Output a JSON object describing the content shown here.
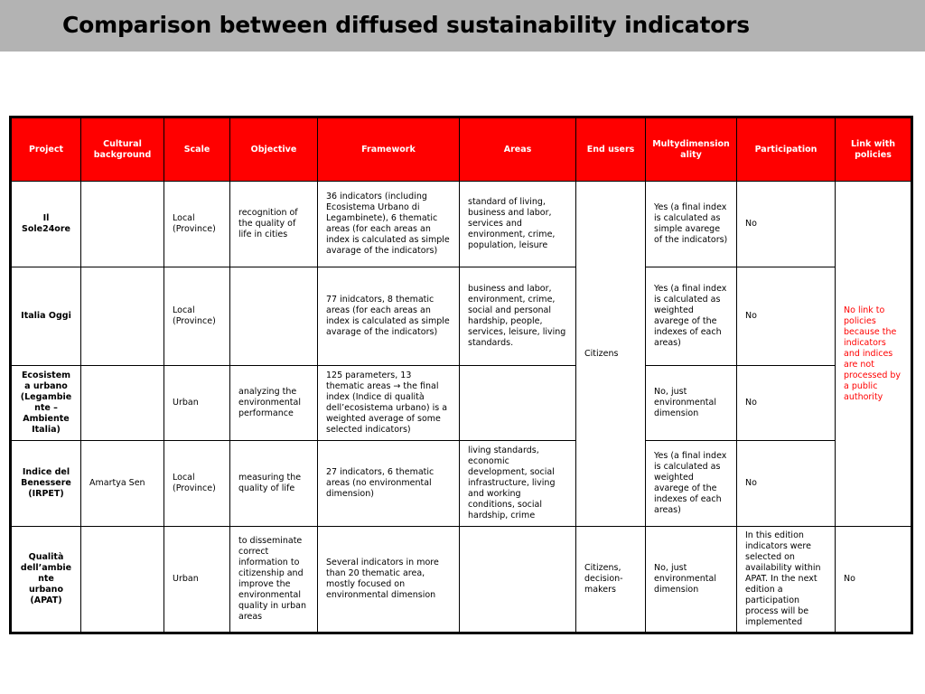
{
  "title": "Comparison between diffused sustainability indicators",
  "colors": {
    "title_bar": "#b3b3b3",
    "header_bg": "#ff0000",
    "header_text": "#ffffff",
    "policy_note": "#ff0000"
  },
  "headers": {
    "project": "Project",
    "cultural": "Cultural background",
    "scale": "Scale",
    "objective": "Objective",
    "framework": "Framework",
    "areas": "Areas",
    "end_users": "End users",
    "multi": "Multydimensionality",
    "participation": "Participation",
    "link": "Link with policies"
  },
  "rows": [
    {
      "project": "Il Sole24ore",
      "cultural": "",
      "scale": "Local (Province)",
      "objective": "recognition of the quality of life in cities",
      "framework": "36 indicators (including Ecosistema Urbano di Legambinete), 6 thematic areas (for each areas an index is calculated as simple avarage of the indicators)",
      "areas": "standard of living, business and labor, services and environment, crime, population, leisure",
      "multi": "Yes (a final index is calculated as simple avarege of the indicators)",
      "participation": "No"
    },
    {
      "project": "Italia Oggi",
      "cultural": "",
      "scale": "Local (Province)",
      "objective": "",
      "framework": "77 inidcators, 8 thematic areas (for each areas an index is calculated as simple avarage of the indicators)",
      "areas": "business and labor, environment, crime, social and personal hardship, people, services, leisure, living standards.",
      "multi": "Yes (a final index is calculated as weighted avarege of the indexes of each areas)",
      "participation": "No"
    },
    {
      "project": "Ecosistema urbano (Legambiente – Ambiente Italia)",
      "cultural": "",
      "scale": "Urban",
      "objective": "analyzing the environmental performance",
      "framework": "125 parameters, 13 thematic areas → the final index (Indice di qualità dell’ecosistema urbano) is a weighted average of some selected indicators)",
      "areas": "",
      "multi": "No, just environmental dimension",
      "participation": "No"
    },
    {
      "project": "Indice del Benessere (IRPET)",
      "cultural": "Amartya Sen",
      "scale": "Local (Province)",
      "objective": "measuring the quality of life",
      "framework": "27 indicators, 6 thematic areas (no environmental dimension)",
      "areas": "living standards, economic development, social infrastructure, living and working conditions, social hardship, crime",
      "multi": "Yes (a final index is calculated as weighted avarege of the indexes of each areas)",
      "participation": "No"
    },
    {
      "project": "Qualità dell’ambiente urbano (APAT)",
      "cultural": "",
      "scale": "Urban",
      "objective": "to disseminate correct information to citizenship and improve the environmental quality in urban areas",
      "framework": "Several indicators in more than 20 thematic area, mostly focused on environmental dimension",
      "areas": "",
      "end_users": "Citizens, decision-makers",
      "multi": "No, just environmental dimension",
      "participation": "In this edition indicators were selected on availability within APAT. In the next edition a participation process will be implemented",
      "link": "No"
    }
  ],
  "merged": {
    "end_users_citizens": "Citizens",
    "link_note": "No link to policies because the indicators and indices are not processed by a public authority"
  }
}
